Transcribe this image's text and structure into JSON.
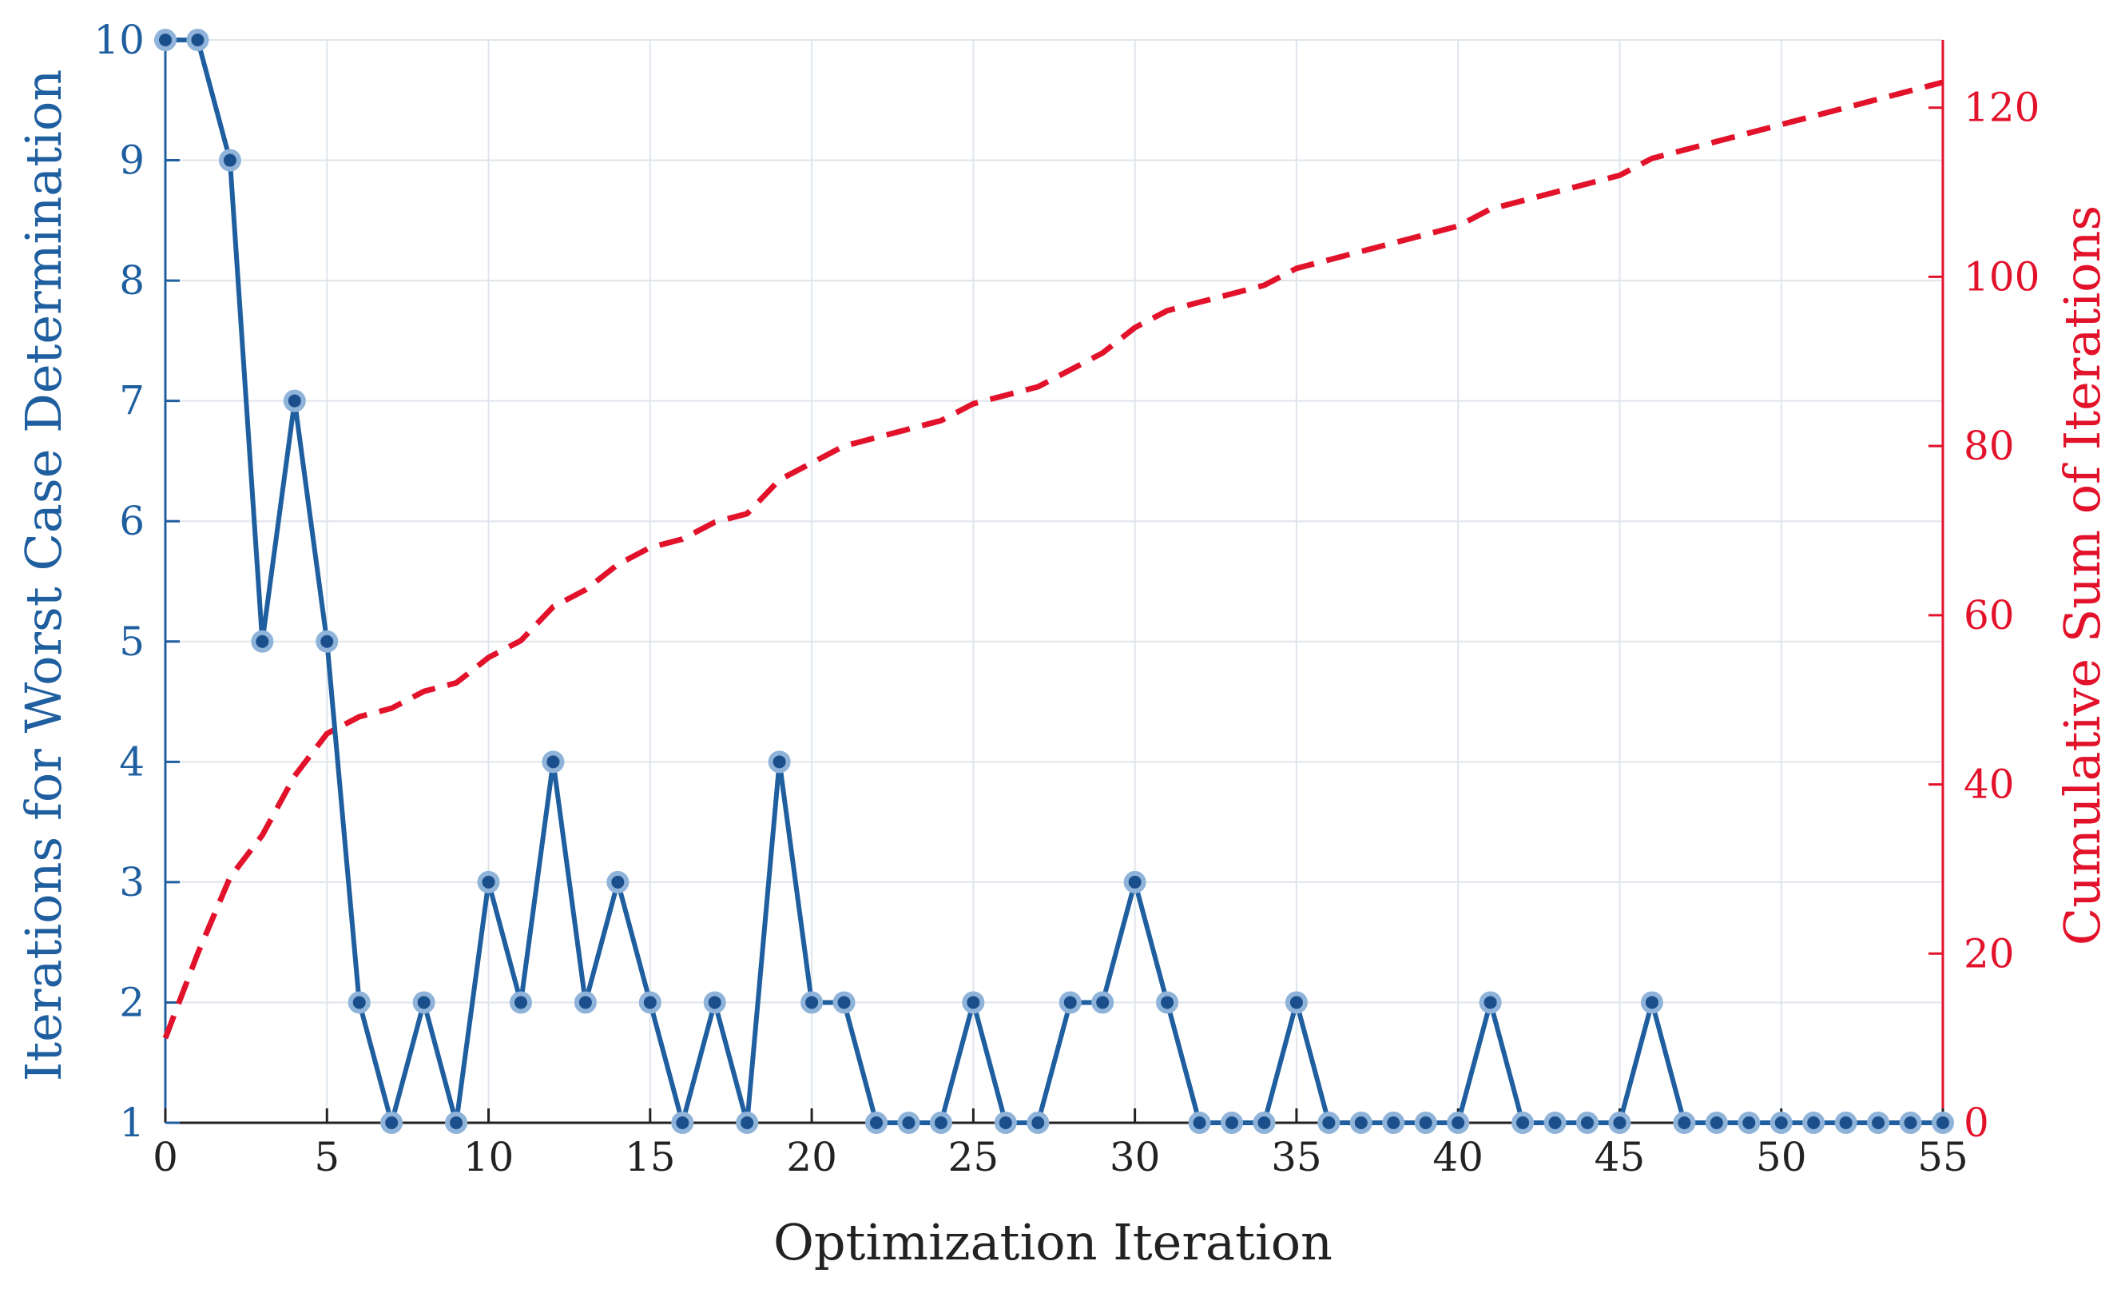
{
  "chart_data": {
    "type": "line",
    "title": "",
    "xlabel": "Optimization Iteration",
    "ylabel_left": "Iterations for Worst Case Determination",
    "ylabel_right": "Cumulative Sum of Iterations",
    "xlim": [
      0,
      55
    ],
    "ylim_left": [
      1,
      10
    ],
    "ylim_right": [
      0,
      128
    ],
    "xticks": [
      0,
      5,
      10,
      15,
      20,
      25,
      30,
      35,
      40,
      45,
      50,
      55
    ],
    "yticks_left": [
      1,
      2,
      3,
      4,
      5,
      6,
      7,
      8,
      9,
      10
    ],
    "yticks_right": [
      0,
      20,
      40,
      60,
      80,
      100,
      120
    ],
    "grid": true,
    "colors": {
      "left": "#1f5fa0",
      "marker": "#1a4f8c",
      "marker_edge": "#8fb3d9",
      "right": "#e3122b",
      "grid": "#dfe5ec",
      "axis": "#222222"
    },
    "series": [
      {
        "name": "Iterations for Worst Case Determination",
        "axis": "left",
        "style": "solid-markers",
        "x": [
          0,
          1,
          2,
          3,
          4,
          5,
          6,
          7,
          8,
          9,
          10,
          11,
          12,
          13,
          14,
          15,
          16,
          17,
          18,
          19,
          20,
          21,
          22,
          23,
          24,
          25,
          26,
          27,
          28,
          29,
          30,
          31,
          32,
          33,
          34,
          35,
          36,
          37,
          38,
          39,
          40,
          41,
          42,
          43,
          44,
          45,
          46,
          47,
          48,
          49,
          50,
          51,
          52,
          53,
          54,
          55
        ],
        "values": [
          10,
          10,
          9,
          5,
          7,
          5,
          2,
          1,
          2,
          1,
          3,
          2,
          4,
          2,
          3,
          2,
          1,
          2,
          1,
          4,
          2,
          2,
          1,
          1,
          1,
          2,
          1,
          1,
          2,
          2,
          3,
          2,
          1,
          1,
          1,
          2,
          1,
          1,
          1,
          1,
          1,
          2,
          1,
          1,
          1,
          1,
          2,
          1,
          1,
          1,
          1,
          1,
          1,
          1,
          1,
          1
        ]
      },
      {
        "name": "Cumulative Sum of Iterations",
        "axis": "right",
        "style": "dashed",
        "x": [
          0,
          1,
          2,
          3,
          4,
          5,
          6,
          7,
          8,
          9,
          10,
          11,
          12,
          13,
          14,
          15,
          16,
          17,
          18,
          19,
          20,
          21,
          22,
          23,
          24,
          25,
          26,
          27,
          28,
          29,
          30,
          31,
          32,
          33,
          34,
          35,
          36,
          37,
          38,
          39,
          40,
          41,
          42,
          43,
          44,
          45,
          46,
          47,
          48,
          49,
          50,
          51,
          52,
          53,
          54,
          55
        ],
        "values": [
          10,
          20,
          29,
          34,
          41,
          46,
          48,
          49,
          51,
          52,
          55,
          57,
          61,
          63,
          66,
          68,
          69,
          71,
          72,
          76,
          78,
          80,
          81,
          82,
          83,
          85,
          86,
          87,
          89,
          91,
          94,
          96,
          97,
          98,
          99,
          101,
          102,
          103,
          104,
          105,
          106,
          108,
          109,
          110,
          111,
          112,
          114,
          115,
          116,
          117,
          118,
          119,
          120,
          121,
          122,
          123
        ]
      }
    ]
  }
}
